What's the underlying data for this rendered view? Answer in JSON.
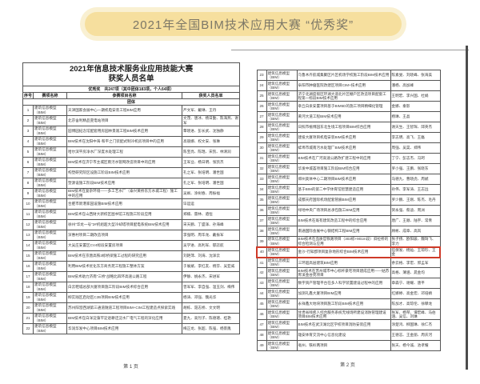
{
  "banner": {
    "title": "2021年全国BIM技术应用大赛 “优秀奖”",
    "bg_outer": "#f9f0d2",
    "bg_inner": "#f6df9e",
    "text_color": "#7c7767"
  },
  "highlight_color": "#cf3a28",
  "page1": {
    "title_line1": "2021年信息技术服务业应用技能大赛",
    "title_line2": "获奖人员名单",
    "award_summary": "优秀奖　共247项（其中团体183项，个人64项）",
    "columns": [
      "序号",
      "赛项名称",
      "参赛项目名称",
      "获奖人员名单"
    ],
    "section_label": "团体",
    "footer": "第 1 页",
    "rows": [
      {
        "no": "1",
        "category": "建筑信息模型（BIM）",
        "project": "天津国家会展中心一期机电安装工程BIM应用",
        "names": "严文军、戴琳、王丹"
      },
      {
        "no": "2",
        "category": "建筑信息模型（BIM）",
        "project": "北京舍利精品变电站项目",
        "names": "文茂、唐冰、杨日勤、陈海燕、谢军"
      },
      {
        "no": "3",
        "category": "建筑信息模型（BIM）",
        "project": "园博园纪念馆配套用房园林景观工程BIM技术应用",
        "names": "覃晓进、彭长武、沈独静"
      },
      {
        "no": "4",
        "category": "建筑信息模型（BIM）",
        "project": "BIM技术在沈阳中海·和平之门装配式制冷机房项目中的应用",
        "names": "高丽娜、权文安、张琳"
      },
      {
        "no": "5",
        "category": "建筑信息模型（BIM）",
        "project": "哈尔滨平房净水厂深度水处理工程",
        "names": "陈宝亮、陈琨、宋凯、林清润"
      },
      {
        "no": "6",
        "category": "建筑信息模型（BIM）",
        "project": "BIM技术在济宁市主城区雨污水管网改造项目中的应用",
        "names": "王军业、杨日明、张凯杰"
      },
      {
        "no": "7",
        "category": "建筑信息模型（BIM）",
        "project": "构塑研究院区设施工阶段BIM技术应用",
        "names": "孔之军、张培明、潘世国"
      },
      {
        "no": "8",
        "category": "建筑信息模型（BIM）",
        "project": "塑源设施工阶段BIM技术应用",
        "names": "孔之军、张培明、潘世国"
      },
      {
        "no": "9",
        "category": "建筑信息模型（BIM）",
        "project": "BIM技术在复杂环境——多工艺水厂（泰兴黄桥东方水城工程）施工中的应用",
        "names": "吴飒、涂树春、周振福"
      },
      {
        "no": "10",
        "category": "建筑信息模型（BIM）",
        "project": "合肥市新港家园设施BIM技术应用",
        "names": "毕运运"
      },
      {
        "no": "11",
        "category": "建筑信息模型（BIM）",
        "project": "BIM技术在山西财大新校区图书馆工程施工阶段应用",
        "names": "郑楠、雷林、骆恒"
      },
      {
        "no": "12",
        "category": "建筑信息模型（BIM）",
        "project": "徐州“华龙一号”2#机组超大型冷却塔项目配电系统BIM技术应用",
        "names": "宋天鹏、丁盛泽、孙海峰"
      },
      {
        "no": "13",
        "category": "建筑信息模型（BIM）",
        "project": "深惠村项目二期改造项目",
        "names": "李强明、周华龙、戴振军"
      },
      {
        "no": "14",
        "category": "建筑信息模型（BIM）",
        "project": "大吴庄安置区CV4标段安置房项目",
        "names": "吴学进、高利军、郁誌航"
      },
      {
        "no": "15",
        "category": "建筑信息模型（BIM）",
        "project": "BIM技术在京唐高铁3标桥梁施工过程的研究应用",
        "names": "刘艳萍、刘海、沈泽云"
      },
      {
        "no": "16",
        "category": "建筑信息模型（BIM）",
        "project": "利用BIM技术优化东方商务苑工程施工整体方案",
        "names": "于展斌、李红友、杨芬、吴亚威"
      },
      {
        "no": "17",
        "category": "建筑信息模型（BIM）",
        "project": "BIM技术助力济南“三桥”战略北四环高速公路工程",
        "names": "伊静、姚永杰、宋进军"
      },
      {
        "no": "18",
        "category": "建筑信息模型（BIM）",
        "project": "白云鞋城总部大厦项目施工阶段BIM技术综合应用",
        "names": "曾军军、李自强、温玉剑、梅伟"
      },
      {
        "no": "19",
        "category": "建筑信息模型（BIM）",
        "project": "柳实践区启动区C2B项目BIM技术应用",
        "names": "杨涛、邓强、魏光华"
      },
      {
        "no": "20",
        "category": "建筑信息模型（BIM）",
        "project": "苏州阳澄西湖第三通道隧道工程项目BIM+CIM工程建造点探索实践",
        "names": "胡栋、聂志桥、文文明"
      },
      {
        "no": "21",
        "category": "建筑信息模型（BIM）",
        "project": "BIM技术在白洋淀藻苲淀退耕还淀水厂电气工程的深化应用",
        "names": "夏九、高烈子、陈德璁、桂艳"
      },
      {
        "no": "22",
        "category": "建筑信息模型（BIM）",
        "project": "华润华发中心项目BIM技术应用",
        "names": "梅正龙、张超、陈强、杨景胤"
      }
    ]
  },
  "page2": {
    "footer": "第 2 页",
    "rows": [
      {
        "no": "23",
        "category": "建筑信息模型（BIM）",
        "project": "乌鲁木齐航城集聚区片区机场学校施工阶段BIM技术应用",
        "names": "陈素旻、刘晓峰、张海美"
      },
      {
        "no": "24",
        "category": "建筑信息模型（BIM）",
        "project": "阜阳市肿瘤医院改建区项目CIM+技术应用",
        "names": "潘杨、高加峰"
      },
      {
        "no": "25",
        "category": "建筑信息模型（BIM）",
        "project": "济宁北湖度假区环湖大道北片区棚户区改造项目配套工程第一标段BIM技术应用",
        "names": "王明宏、李兴国、杜娟"
      },
      {
        "no": "26",
        "category": "建筑信息模型（BIM）",
        "project": "章丘白泉安置项目基于BIM5D的施工项目精细化管理",
        "names": "金娜、秦影"
      },
      {
        "no": "27",
        "category": "建筑信息模型（BIM）",
        "project": "黄河大道工程BIM技术应用",
        "names": "杨琳、王晶"
      },
      {
        "no": "28",
        "category": "建筑信息模型（BIM）",
        "project": "日照市植博园东北生境工程项目BIM综合应用",
        "names": "谢天生、王智琛、邱英杰"
      },
      {
        "no": "29",
        "category": "建筑信息模型（BIM）",
        "project": "建投大厦项目机电安装BIM技术应用",
        "names": "李志明、高飞、王磊"
      },
      {
        "no": "30",
        "category": "建筑信息模型（BIM）",
        "project": "蚌埠市城南污水处理厂BIM技术应用",
        "names": "周强、吴昊、郑伟"
      },
      {
        "no": "31",
        "category": "建筑信息模型（BIM）",
        "project": "BIM技术在广河高速公路改扩建工程中的应用",
        "names": "丁宁、彭志杰、冯珂"
      },
      {
        "no": "32",
        "category": "建筑信息模型（BIM）",
        "project": "华发中城荟项目施工阶段BIM综合应用",
        "names": "罗小强、王鹏、张晓东"
      },
      {
        "no": "33",
        "category": "建筑信息模型（BIM）",
        "project": "郑州奥体中心二期项目BIM技术应用",
        "names": "马德九、曹晓虎、周斌"
      },
      {
        "no": "34",
        "category": "建筑信息模型（BIM）",
        "project": "基于BIM的第二中学体育馆智慧建造应用",
        "names": "孙伟、李军涛、王志远"
      },
      {
        "no": "35",
        "category": "建筑信息模型（BIM）",
        "project": "成都天府国际机场配套管廊BIM应用",
        "names": "罗少鹏、王刚、陈杰、毛丹"
      },
      {
        "no": "36",
        "category": "建筑信息模型（BIM）",
        "project": "绿地中央广场项目总承包施工BIM应用",
        "names": "贺永强、蔡迪、周洲"
      },
      {
        "no": "37",
        "category": "建筑信息模型（BIM）",
        "project": "BIM技术在既有建筑改造工程中的综合应用",
        "names": "唐广、王顺、陆宇、常青"
      },
      {
        "no": "38",
        "category": "建筑信息模型（BIM）",
        "project": "南通国际会展中心钢结构工程BIM应用",
        "names": "顾彬、成章、高岚"
      },
      {
        "no": "39",
        "category": "建筑信息模型（BIM）",
        "project": "BIM技术在品质官铁路项目（303标+901m段）斜拉桥的综合检测与应用",
        "names": "张子扬、欧阳骏、魏琦飞、李力"
      },
      {
        "no": "40",
        "category": "建筑信息模型（BIM）",
        "project": "金沙·行知郡项目复杂地形综合BIM技术应用",
        "names": "伍保发、杨灿、王琼珍、王金",
        "highlight": true
      },
      {
        "no": "41",
        "category": "建筑信息模型（BIM）",
        "project": "三环超高层建筑BIM应用",
        "names": "余云格、李宏、郭孟军"
      },
      {
        "no": "42",
        "category": "建筑信息模型（BIM）",
        "project": "BIM技术在苏州城市中心标杆豪宅项目建成应用——姑苏胥溪金谷苑项目",
        "names": "高格、薄涵、晁金均"
      },
      {
        "no": "43",
        "category": "建筑信息模型（BIM）",
        "project": "数字资产管理平台在多人科学装置建设过程中的应用",
        "names": "章森宁、谢耀、唐平"
      },
      {
        "no": "44",
        "category": "建筑信息模型（BIM）",
        "project": "加测礼鑫大厦项目BIM应用",
        "names": "红娜婷、高金宏、邓培婧"
      },
      {
        "no": "45",
        "category": "建筑信息模型（BIM）",
        "project": "永祥鑫大地块项目施工阶段BIM技术应用",
        "names": "陈加才、高琼伦、徐攀龙"
      },
      {
        "no": "46",
        "category": "建筑信息模型（BIM）",
        "project": "甘肃省残疾人综合服务系统无线场所建设消防管理建设项目BIM技术应用",
        "names": "张军、杨琴、谭宏峰、马伯涵、吴信、刘琳"
      },
      {
        "no": "47",
        "category": "建筑信息模型（BIM）",
        "project": "BIM技术在武汉湖北区学校项目消防安装应用",
        "names": "涂楚鸿、柳国琳、徐仁杰"
      },
      {
        "no": "48",
        "category": "建筑信息模型（BIM）",
        "project": "雄安体育交流中心信息化建设",
        "names": "王德志、王金丽、周庆河"
      },
      {
        "no": "49",
        "category": "建筑信息模型（BIM）",
        "project": "亳州、铁岭两项目",
        "names": "张天、杨今诚、池孝耀"
      }
    ]
  }
}
